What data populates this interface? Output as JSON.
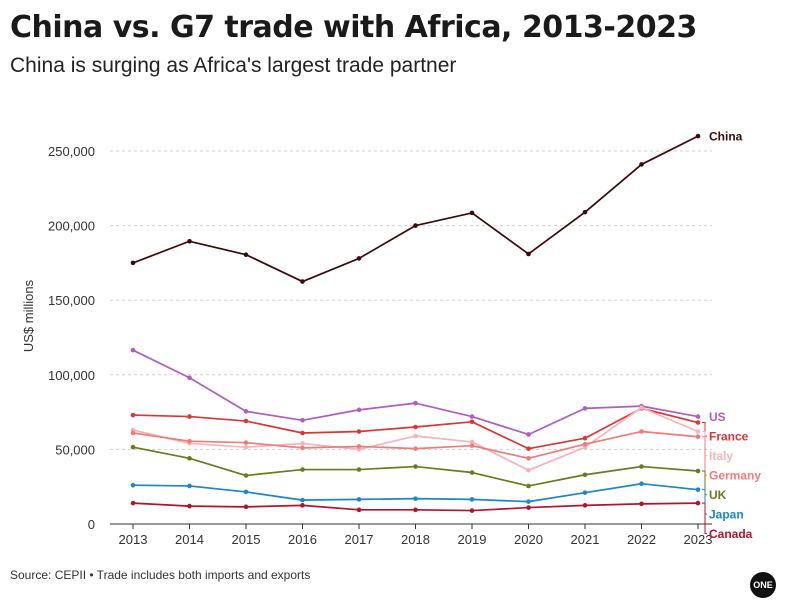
{
  "title": "China vs. G7 trade with Africa, 2013-2023",
  "subtitle": "China is surging as Africa's largest trade partner",
  "source": "Source: CEPII • Trade includes both imports and exports",
  "logo_text": "ONE",
  "chart_data": {
    "type": "line",
    "title": "China vs. G7 trade with Africa, 2013-2023",
    "subtitle": "China is surging as Africa's largest trade partner",
    "ylabel": "US$ millions",
    "xlabel": "",
    "ylim": [
      0,
      260000
    ],
    "grid": true,
    "legend": "direct labels at line ends (right)",
    "x": [
      2013,
      2014,
      2015,
      2016,
      2017,
      2018,
      2019,
      2020,
      2021,
      2022,
      2023
    ],
    "x_ticks": [
      "2013",
      "2014",
      "2015",
      "2016",
      "2017",
      "2018",
      "2019",
      "2020",
      "2021",
      "2022",
      "2023"
    ],
    "y_ticks": [
      {
        "value": 0,
        "label": "0"
      },
      {
        "value": 50000,
        "label": "50,000"
      },
      {
        "value": 100000,
        "label": "100,000"
      },
      {
        "value": 150000,
        "label": "150,000"
      },
      {
        "value": 200000,
        "label": "200,000"
      },
      {
        "value": 250000,
        "label": "250,000"
      }
    ],
    "series": [
      {
        "name": "China",
        "color": "#3b0a0a",
        "values": [
          175000,
          189500,
          180500,
          162500,
          178000,
          200000,
          208500,
          181000,
          209000,
          241000,
          260000
        ]
      },
      {
        "name": "US",
        "color": "#b05cc0",
        "values": [
          116500,
          98000,
          75500,
          69500,
          76500,
          81000,
          72000,
          60000,
          77500,
          79000,
          72000
        ]
      },
      {
        "name": "France",
        "color": "#d93636",
        "values": [
          73000,
          72000,
          69000,
          61000,
          62000,
          65000,
          68500,
          50500,
          57500,
          77500,
          68000
        ]
      },
      {
        "name": "Italy",
        "color": "#f5b3ba",
        "values": [
          63000,
          54000,
          51500,
          54000,
          50000,
          59000,
          55000,
          36000,
          51500,
          78000,
          62000
        ]
      },
      {
        "name": "Germany",
        "color": "#ef7b7b",
        "values": [
          61000,
          55500,
          54500,
          51000,
          52000,
          50500,
          52500,
          44000,
          53500,
          62000,
          58500
        ]
      },
      {
        "name": "UK",
        "color": "#6b7a1a",
        "values": [
          51500,
          44000,
          32500,
          36500,
          36500,
          38500,
          34500,
          25500,
          33000,
          38500,
          35500
        ]
      },
      {
        "name": "Japan",
        "color": "#1a86c4",
        "values": [
          26000,
          25500,
          21500,
          16000,
          16500,
          17000,
          16500,
          15000,
          21000,
          27000,
          23000
        ]
      },
      {
        "name": "Canada",
        "color": "#b0152c",
        "values": [
          14000,
          12000,
          11500,
          12500,
          9500,
          9500,
          9000,
          11000,
          12500,
          13500,
          14000
        ]
      }
    ]
  }
}
